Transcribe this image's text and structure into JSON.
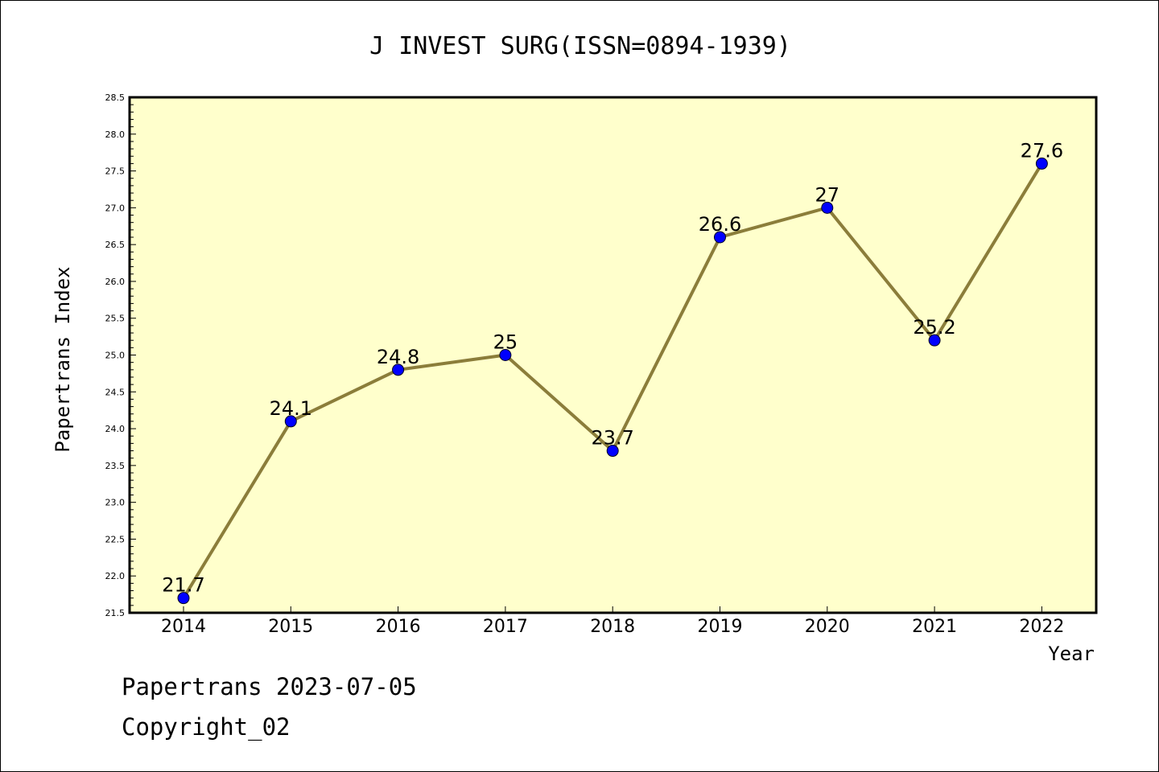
{
  "chart_data": {
    "type": "line",
    "title": "J INVEST SURG(ISSN=0894-1939)",
    "xlabel": "Year",
    "ylabel": "Papertrans Index",
    "categories": [
      "2014",
      "2015",
      "2016",
      "2017",
      "2018",
      "2019",
      "2020",
      "2021",
      "2022"
    ],
    "values": [
      21.7,
      24.1,
      24.8,
      25.0,
      23.7,
      26.6,
      27.0,
      25.2,
      27.6
    ],
    "data_labels": [
      "21.7",
      "24.1",
      "24.8",
      "25",
      "23.7",
      "26.6",
      "27",
      "25.2",
      "27.6"
    ],
    "ylim": [
      21.5,
      28.5
    ],
    "yticks": [
      "21.5",
      "22.0",
      "22.5",
      "23.0",
      "23.5",
      "24.0",
      "24.5",
      "25.0",
      "25.5",
      "26.0",
      "26.5",
      "27.0",
      "27.5",
      "28.0",
      "28.5"
    ],
    "grid": false,
    "colors": {
      "plot_bg": "#ffffcc",
      "line": "#8b7d3a",
      "marker": "#0000ff"
    }
  },
  "footer": {
    "line1": "Papertrans 2023-07-05",
    "line2": "Copyright_02"
  }
}
